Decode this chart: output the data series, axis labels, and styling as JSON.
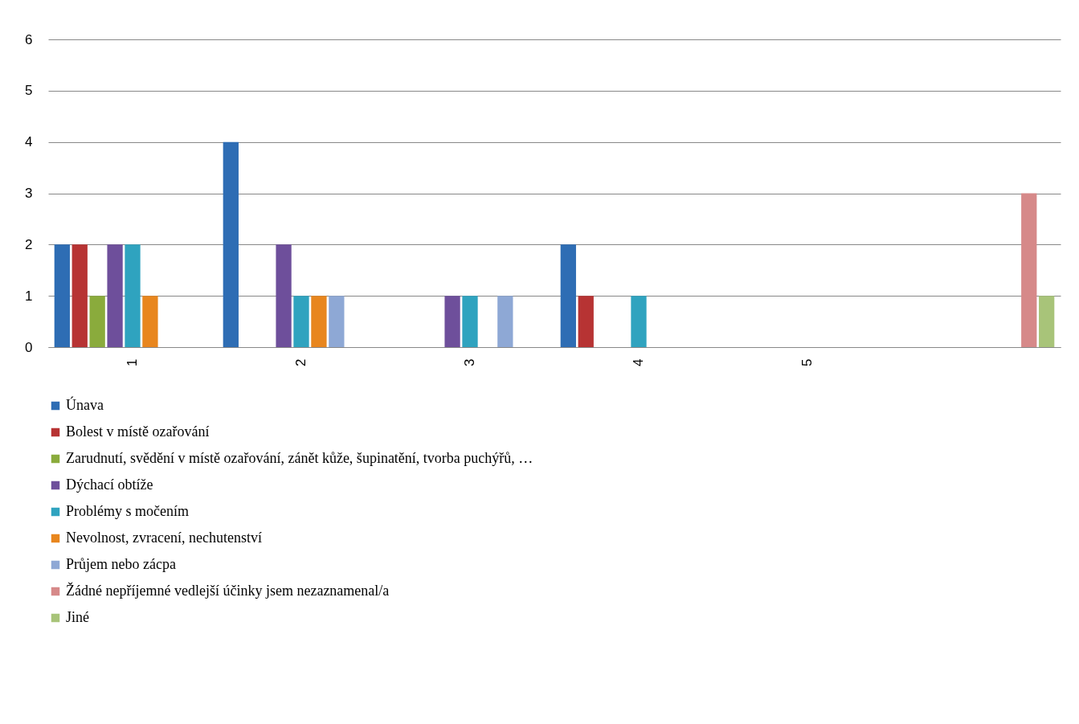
{
  "chart_data": {
    "type": "bar",
    "categories": [
      "1",
      "2",
      "3",
      "4",
      "5",
      null
    ],
    "series": [
      {
        "name": "Únava",
        "color": "#2e6db4",
        "values": [
          2,
          4,
          0,
          2,
          0,
          0
        ]
      },
      {
        "name": "Bolest v místě ozařování",
        "color": "#b73333",
        "values": [
          2,
          0,
          0,
          1,
          0,
          0
        ]
      },
      {
        "name": "Zarudnutí, svědění v místě ozařování, zánět kůže, šupinatění, tvorba puchýřů, …",
        "color": "#8aab3c",
        "values": [
          1,
          0,
          0,
          0,
          0,
          0
        ]
      },
      {
        "name": "Dýchací obtíže",
        "color": "#6e4f9b",
        "values": [
          2,
          2,
          1,
          0,
          0,
          0
        ]
      },
      {
        "name": "Problémy s močením",
        "color": "#2fa3bf",
        "values": [
          2,
          1,
          1,
          1,
          0,
          0
        ]
      },
      {
        "name": "Nevolnost, zvracení, nechutenství",
        "color": "#e8861e",
        "values": [
          1,
          1,
          0,
          0,
          0,
          0
        ]
      },
      {
        "name": "Průjem nebo zácpa",
        "color": "#8ea8d5",
        "values": [
          0,
          1,
          1,
          0,
          0,
          0
        ]
      },
      {
        "name": "Žádné nepříjemné vedlejší účinky jsem nezaznamenal/a",
        "color": "#d68989",
        "values": [
          0,
          0,
          0,
          0,
          0,
          3
        ]
      },
      {
        "name": "Jiné",
        "color": "#a8c479",
        "values": [
          0,
          0,
          0,
          0,
          0,
          1
        ]
      }
    ],
    "ylim": [
      0,
      6
    ],
    "yticks": [
      0,
      1,
      2,
      3,
      4,
      5,
      6
    ],
    "grid": "y",
    "legend": "bottom"
  }
}
